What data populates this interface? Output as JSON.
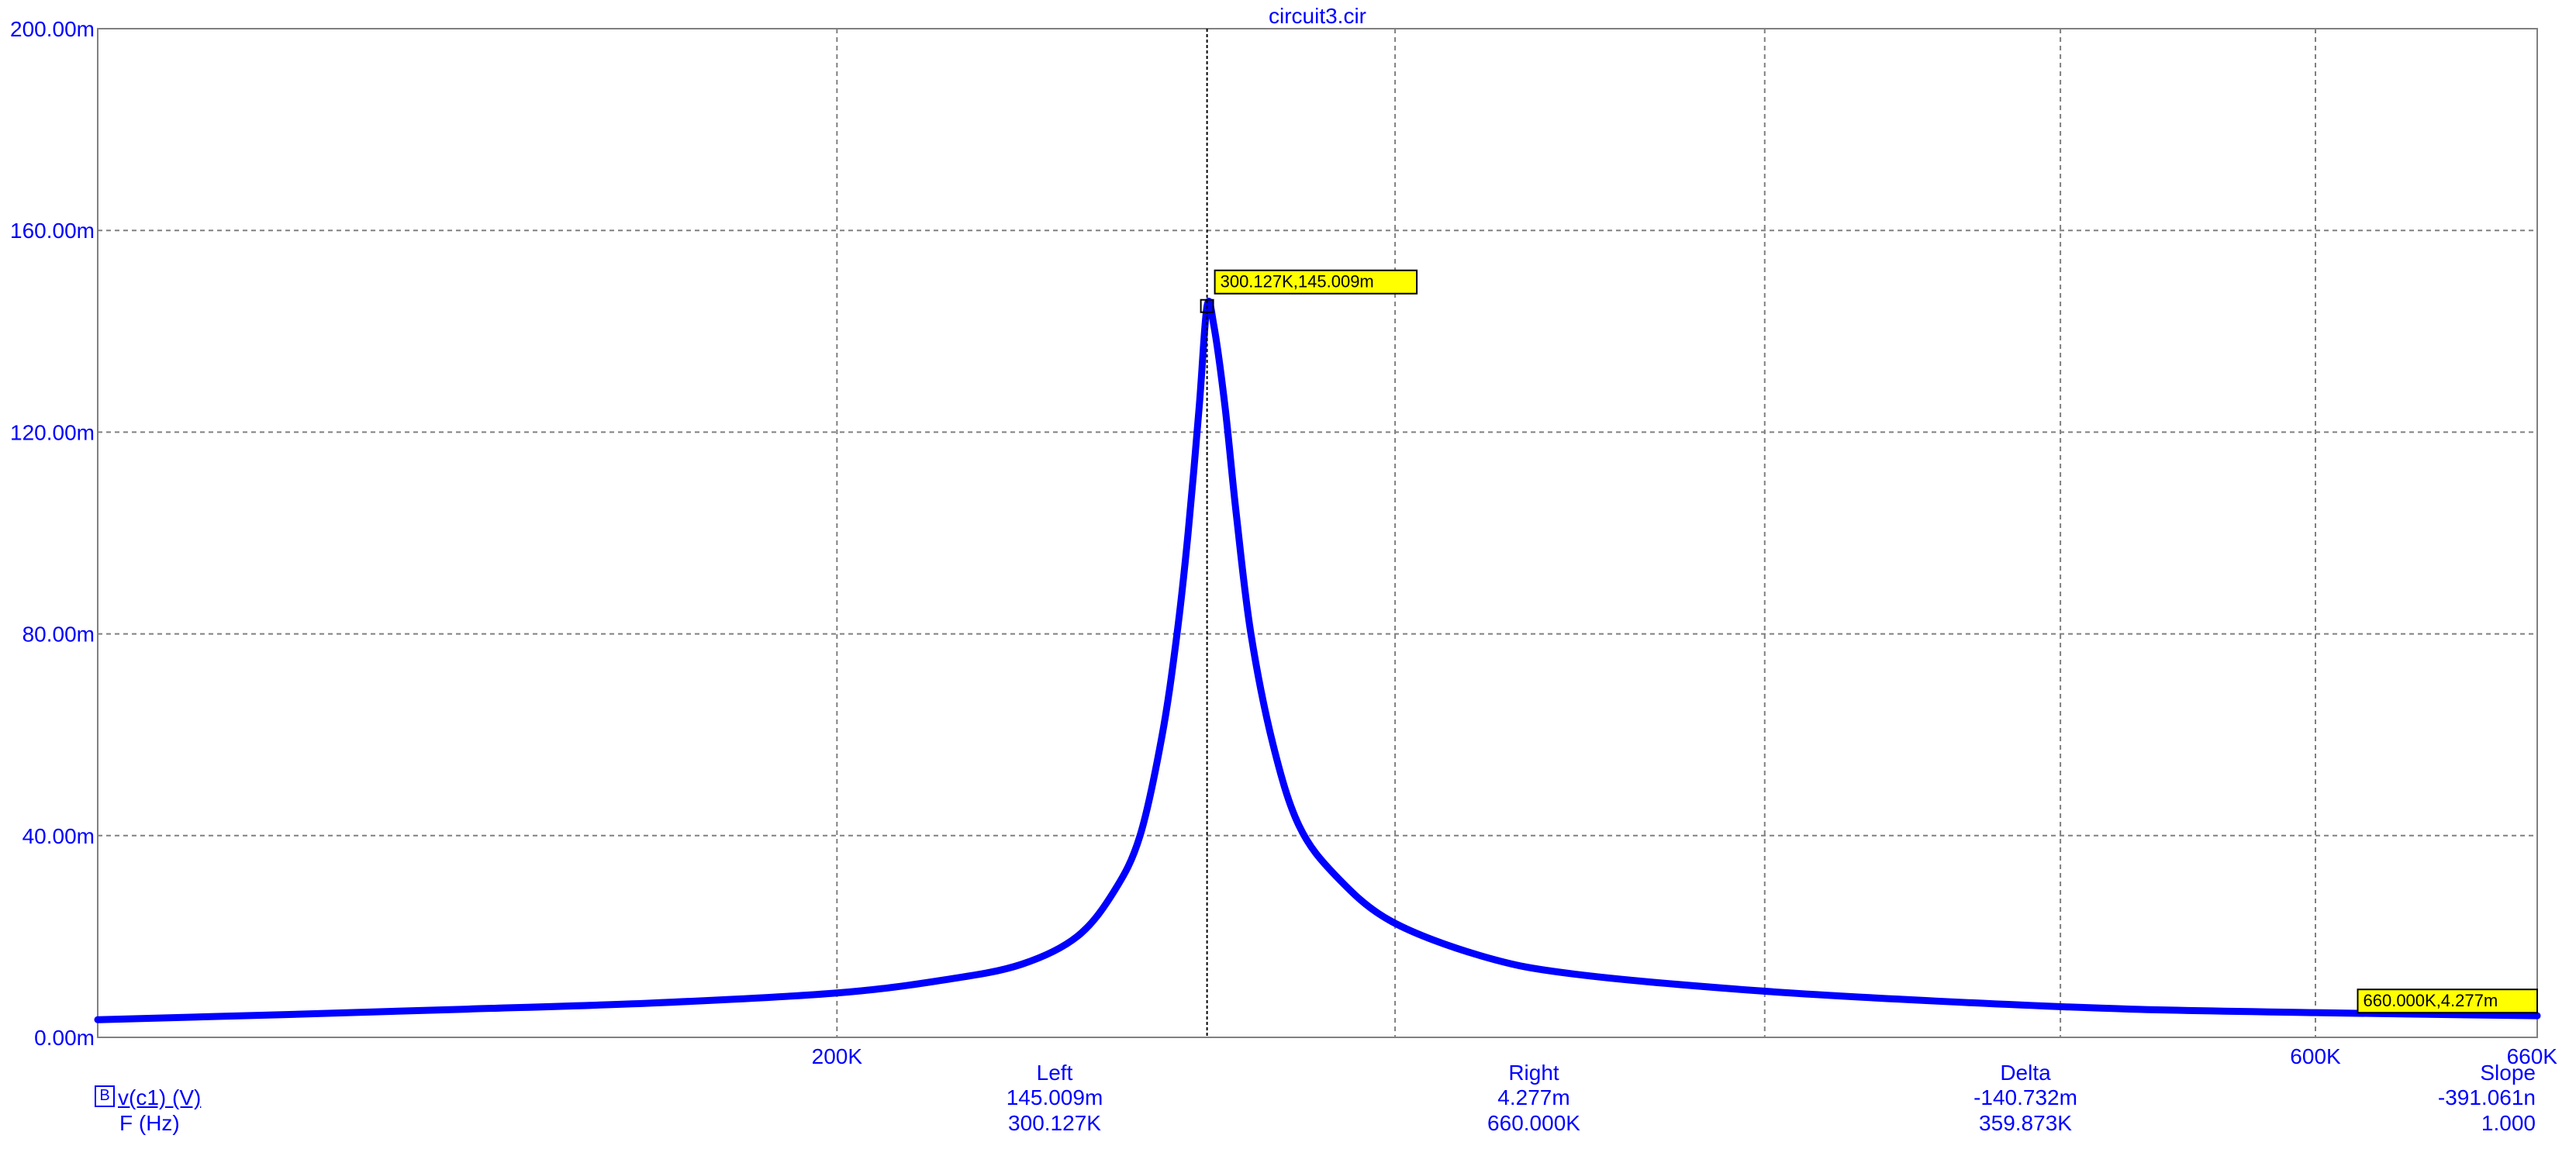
{
  "chart_data": {
    "type": "line",
    "title": "circuit3.cir",
    "x_axis": {
      "label": "F (Hz)",
      "range": [
        0,
        660000
      ],
      "ticks": [
        {
          "value": 200000,
          "label": "200K"
        },
        {
          "value": 600000,
          "label": "600K"
        },
        {
          "value": 660000,
          "label": "660K"
        }
      ],
      "extra_gridlines": [
        351000,
        451000,
        531000
      ]
    },
    "y_axis": {
      "range": [
        0,
        0.2
      ],
      "ticks": [
        {
          "value": 0.0,
          "label": "0.00m"
        },
        {
          "value": 0.04,
          "label": "40.00m"
        },
        {
          "value": 0.08,
          "label": "80.00m"
        },
        {
          "value": 0.12,
          "label": "120.00m"
        },
        {
          "value": 0.16,
          "label": "160.00m"
        },
        {
          "value": 0.2,
          "label": "200.00m"
        }
      ]
    },
    "grid": true,
    "series": [
      {
        "name": "v(c1) (V)",
        "color": "#0000ff",
        "x": [
          0,
          50000,
          100000,
          150000,
          200000,
          230000,
          250000,
          265000,
          275000,
          282000,
          288000,
          292000,
          295000,
          298000,
          300127,
          302000,
          305000,
          308000,
          312000,
          318000,
          325000,
          335000,
          350000,
          375000,
          400000,
          450000,
          500000,
          550000,
          600000,
          660000
        ],
        "y": [
          0.0035,
          0.0045,
          0.0056,
          0.0068,
          0.0088,
          0.0115,
          0.0145,
          0.02,
          0.029,
          0.04,
          0.06,
          0.08,
          0.1,
          0.125,
          0.145,
          0.141,
          0.125,
          0.104,
          0.08,
          0.058,
          0.042,
          0.032,
          0.023,
          0.016,
          0.0125,
          0.0092,
          0.0071,
          0.0056,
          0.0049,
          0.004277
        ]
      }
    ],
    "cursors": [
      {
        "x": 300127,
        "y": 0.145009,
        "label": "300.127K,145.009m"
      },
      {
        "x": 660000,
        "y": 0.004277,
        "label": "660.000K,4.277m"
      }
    ]
  },
  "readout": {
    "headers": {
      "left": "Left",
      "right": "Right",
      "delta": "Delta",
      "slope": "Slope"
    },
    "rows": [
      {
        "box": "B",
        "name": "v(c1) (V)",
        "left": "145.009m",
        "right": "4.277m",
        "delta": "-140.732m",
        "slope": "-391.061n"
      },
      {
        "box": "",
        "name": "F (Hz)",
        "left": "300.127K",
        "right": "660.000K",
        "delta": "359.873K",
        "slope": "1.000"
      }
    ]
  }
}
